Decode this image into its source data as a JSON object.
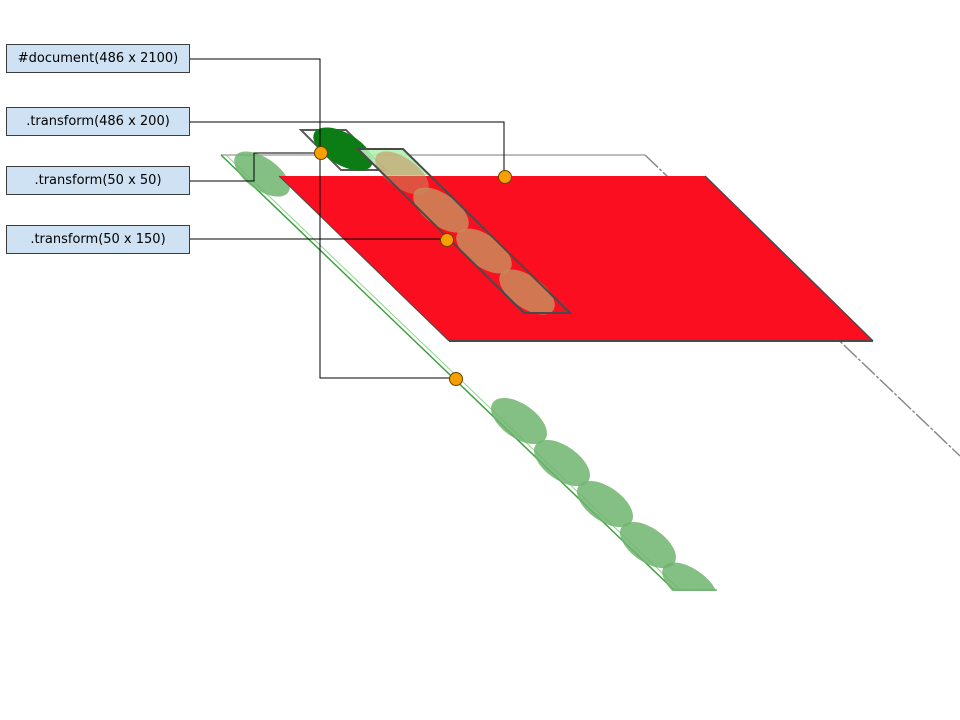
{
  "labels": {
    "document": "#document(486 x 2100)",
    "transform_486x200": ".transform(486 x 200)",
    "transform_50x50": ".transform(50 x 50)",
    "transform_50x150": ".transform(50 x 150)"
  },
  "colors": {
    "label_fill": "#cfe2f3",
    "red_layer": "#fa0e1f",
    "dark_green": "#0c7d15",
    "green_ellipse": "#6fb46f",
    "light_green": "#b3f1b3",
    "brown_ellipse": "#c98a5a",
    "marker": "#f5a000"
  }
}
